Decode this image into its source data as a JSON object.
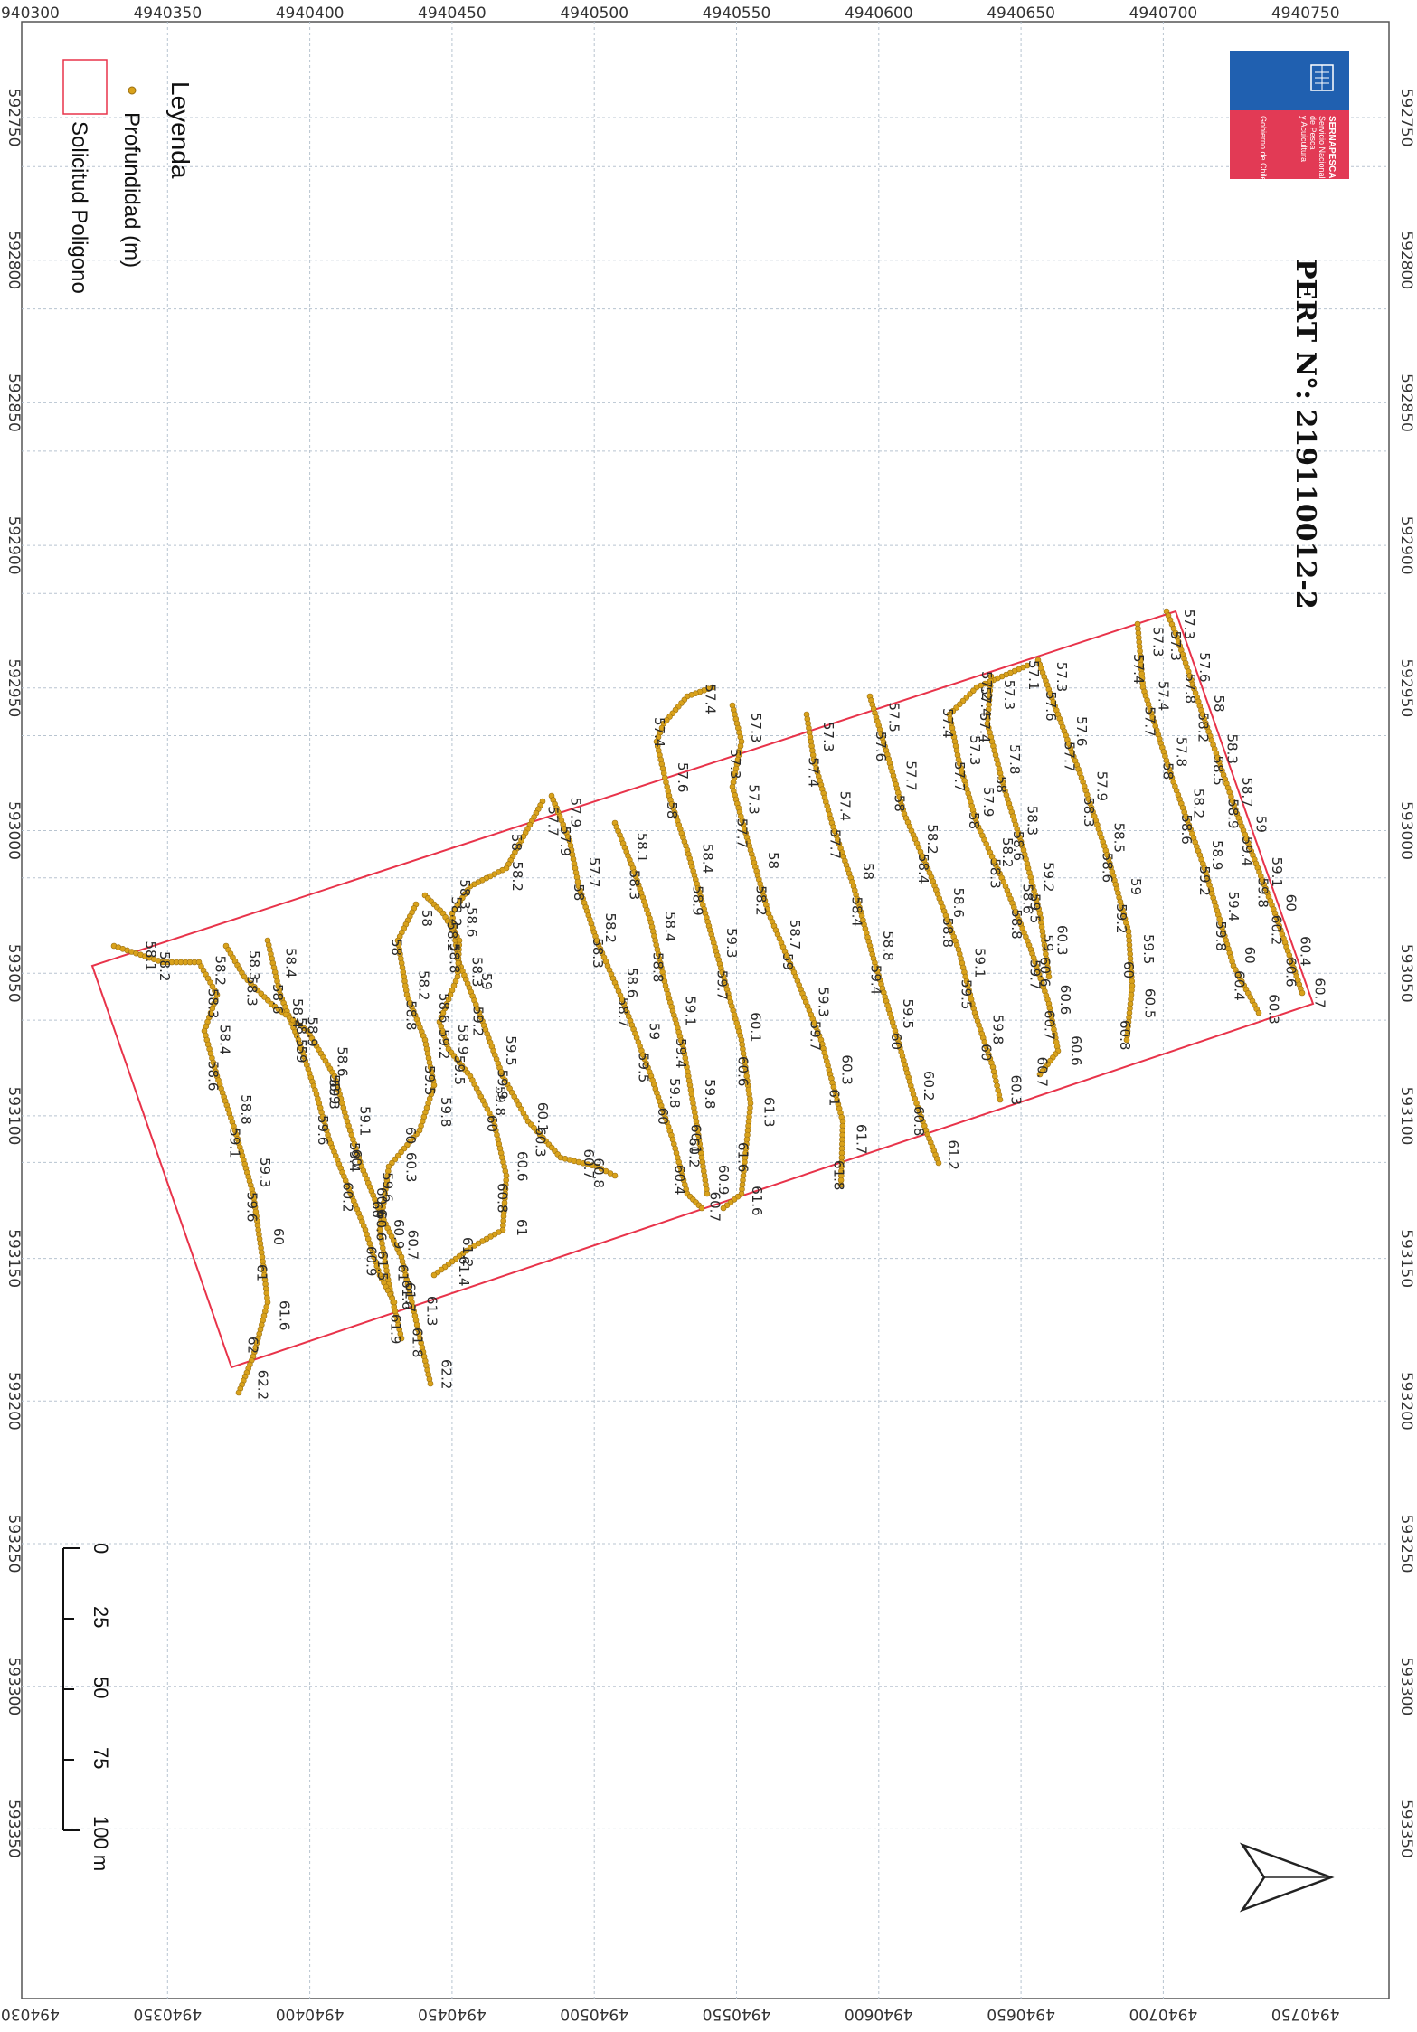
{
  "title": "PERT N°: 219110012-2",
  "legend": {
    "title": "Leyenda",
    "items": [
      {
        "label": "Profundidad (m)",
        "symbol": "point",
        "color": "#d9a21b"
      },
      {
        "label": "Solicitud Poligono",
        "symbol": "polygon",
        "color": "#e8334a"
      }
    ]
  },
  "logo": {
    "name": "SERNAPESCA",
    "line1": "Servicio Nacional",
    "line2": "de Pesca",
    "line3": "y Acuicultura",
    "gov": "Gobierno de Chile",
    "colors": {
      "blue": "#2060b0",
      "red": "#e23a55"
    }
  },
  "north_arrow": {
    "icon": "north-arrow-icon"
  },
  "scale_bar": {
    "labels": [
      "0",
      "25",
      "50",
      "75",
      "100 m"
    ]
  },
  "axes": {
    "easting_ticks": [
      "4940300",
      "4940350",
      "4940400",
      "4940450",
      "4940500",
      "4940550",
      "4940600",
      "4940650",
      "4940700",
      "4940750"
    ],
    "northing_ticks": [
      "592750",
      "592800",
      "592850",
      "592900",
      "592950",
      "593000",
      "593050",
      "593100",
      "593150",
      "593200",
      "593250",
      "593300",
      "593350"
    ]
  },
  "colors": {
    "track": "#d9a21b",
    "track_stroke": "#9a6e10",
    "polygon": "#e8334a",
    "grid": "#b8c4d0"
  },
  "depth_labels": [
    [
      "57.3",
      "57.3",
      "57.6",
      "57.8",
      "58",
      "58.2",
      "58.3",
      "58.5",
      "58.7",
      "58.9",
      "59",
      "59.4",
      "59.1",
      "59.8",
      "60",
      "60.2",
      "60.4",
      "60.6",
      "60.7"
    ],
    [
      "57.3",
      "57.4",
      "57.4",
      "57.7",
      "57.8",
      "58",
      "58.2",
      "58.6",
      "58.9",
      "59.2",
      "59.4",
      "59.8",
      "60",
      "60.4",
      "60.3"
    ],
    [
      "57.3",
      "57.6",
      "57.6",
      "57.7",
      "57.9",
      "58.3",
      "58.5",
      "58.6",
      "59",
      "59.2",
      "59.5",
      "60",
      "60.5",
      "60.8"
    ],
    [
      "57.1",
      "57.2",
      "57.4",
      "57.4",
      "57.3",
      "57.7",
      "57.9",
      "58",
      "58.2",
      "58.3",
      "58.6",
      "58.8",
      "59",
      "59.7",
      "60.6",
      "60.7",
      "60.6",
      "60.7"
    ],
    [
      "57.3",
      "57.4",
      "57.8",
      "58",
      "58.3",
      "58.6",
      "59.2",
      "59.5",
      "60.3",
      "60.6"
    ],
    [
      "57.5",
      "57.6",
      "57.7",
      "58",
      "58.2",
      "58.4",
      "58.6",
      "58.8",
      "59.1",
      "59.5",
      "59.8",
      "60",
      "60.3"
    ],
    [
      "57.3",
      "57.4",
      "57.4",
      "57.7",
      "58",
      "58.4",
      "58.8",
      "59.4",
      "59.5",
      "60",
      "60.2",
      "60.8",
      "61.2"
    ],
    [
      "57.3",
      "57.3",
      "57.3",
      "57.7",
      "58",
      "58.2",
      "58.7",
      "59",
      "59.3",
      "59.7",
      "60.3",
      "61",
      "61.7",
      "61.8"
    ],
    [
      "57.4",
      "57.4",
      "57.6",
      "58",
      "58.4",
      "58.9",
      "59.3",
      "59.7",
      "60.1",
      "60.6",
      "61.3",
      "61.6",
      "61.6"
    ],
    [
      "58.1",
      "58.3",
      "58.4",
      "58.8",
      "59.1",
      "59.4",
      "59.8",
      "60.1",
      "60.9"
    ],
    [
      "57.9",
      "57.9",
      "57.7",
      "58",
      "58.2",
      "58.3",
      "58.6",
      "58.7",
      "59",
      "59.5",
      "59.8",
      "60",
      "60.2",
      "60.4",
      "60.7"
    ],
    [
      "57.7",
      "58",
      "58.2",
      "58.3",
      "58.6",
      "58.8",
      "59",
      "59.2",
      "59.5",
      "59.9",
      "60.1",
      "60.3",
      "60.7",
      "60.8"
    ],
    [
      "58.2",
      "58.2",
      "58.3",
      "58.6",
      "58.9",
      "59.5",
      "59.8",
      "60",
      "60.6",
      "60.8",
      "61",
      "61.2",
      "61.4"
    ],
    [
      "58",
      "58",
      "58.2",
      "58.8",
      "59.2",
      "59.5",
      "59.8",
      "60",
      "60.3",
      "60.6",
      "60.9",
      "61.5",
      "61.7",
      "61.9"
    ],
    [
      "58.4",
      "58.6",
      "58.9",
      "59",
      "59.3",
      "59.6",
      "60",
      "60.2",
      "60.6",
      "60.9",
      "61.6"
    ],
    [
      "58.3",
      "58.3",
      "58.4",
      "58.5",
      "58.6",
      "58.9",
      "59.1",
      "59.4",
      "59.6",
      "60",
      "60.7",
      "61",
      "61.3",
      "61.8",
      "62.2"
    ],
    [
      "58.1",
      "58.2",
      "58.2",
      "58.3",
      "58.4",
      "58.6",
      "58.8",
      "59.1",
      "59.3",
      "59.6",
      "60",
      "61",
      "61.6",
      "62",
      "62.2"
    ]
  ]
}
